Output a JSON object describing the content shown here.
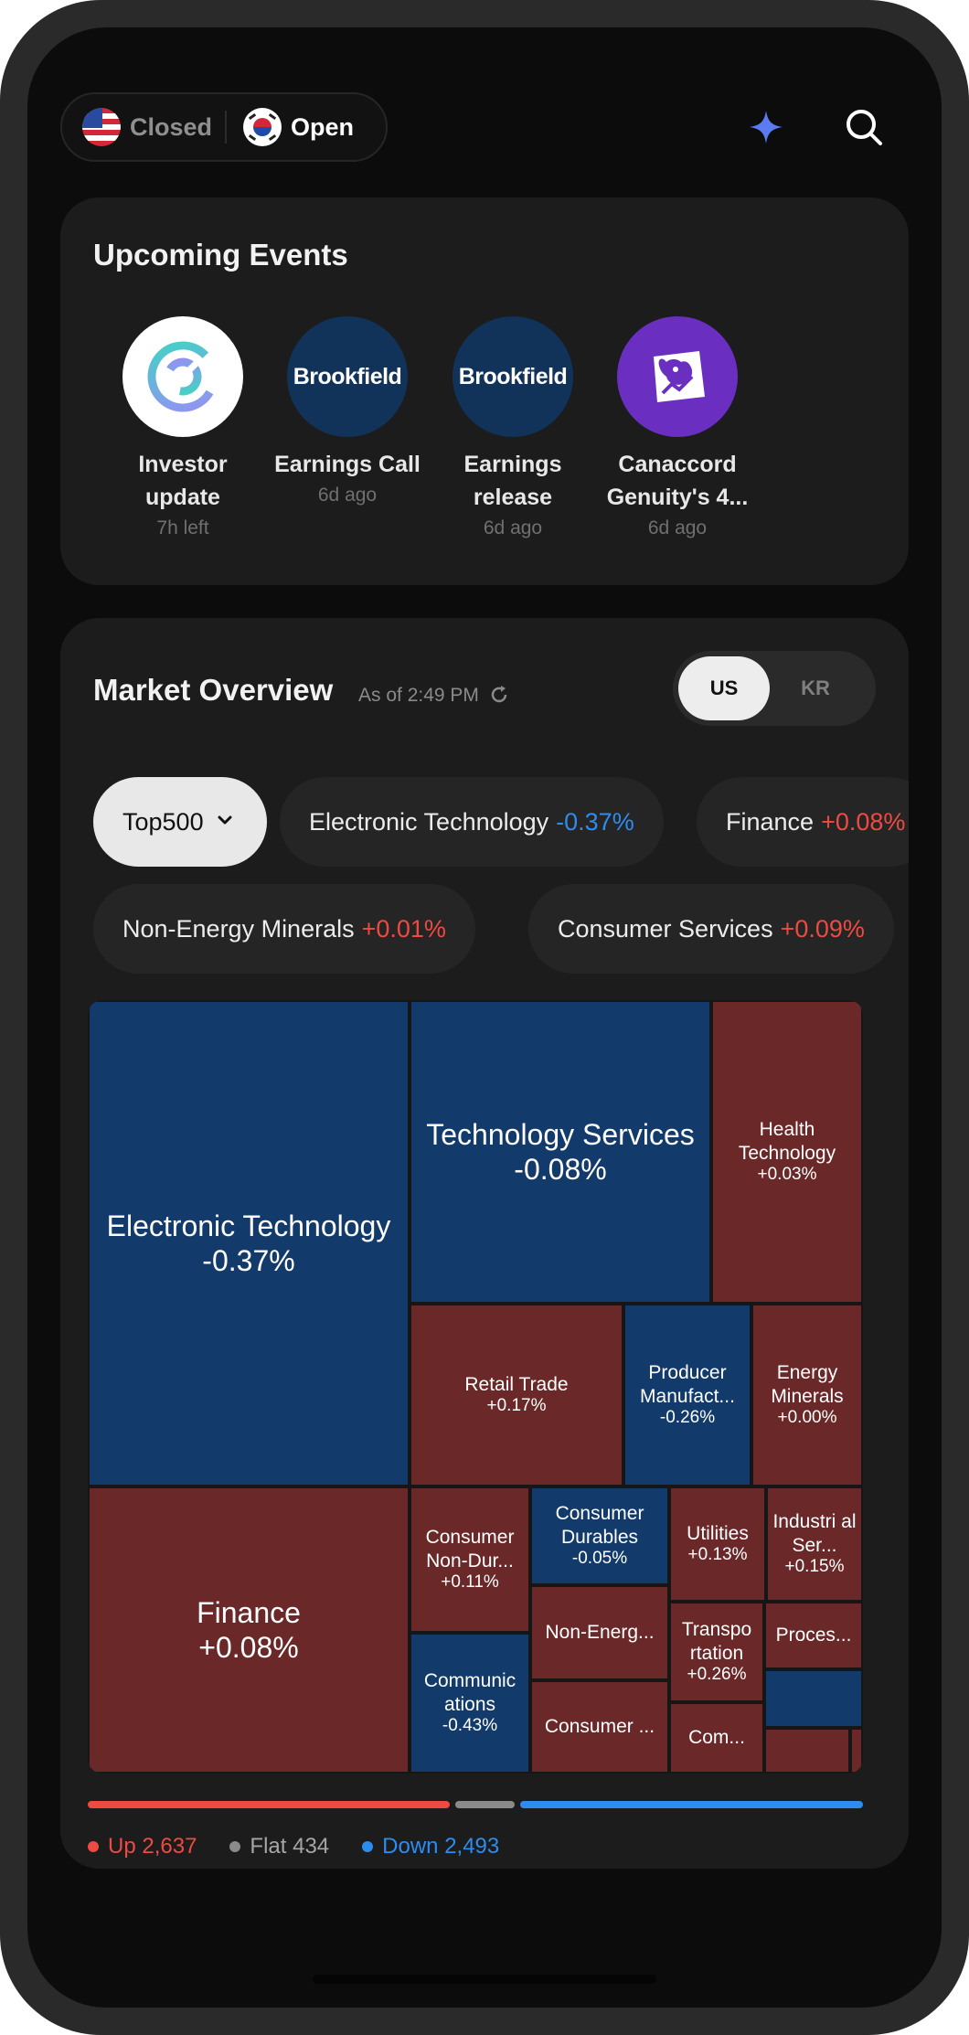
{
  "markets": {
    "us": {
      "label": "Closed",
      "flag": "us-flag-icon"
    },
    "kr": {
      "label": "Open",
      "flag": "kr-flag-icon"
    }
  },
  "header_icons": [
    "sparkle-icon",
    "search-icon"
  ],
  "events": {
    "title": "Upcoming Events",
    "items": [
      {
        "name": "Investor update",
        "time": "7h left",
        "logo": "ring-logo"
      },
      {
        "name": "Earnings Call",
        "time": "6d ago",
        "logo_text": "Brookfield"
      },
      {
        "name": "Earnings release",
        "time": "6d ago",
        "logo_text": "Brookfield"
      },
      {
        "name": "Canaccord Genuity's 4...",
        "time": "6d ago",
        "logo": "dog-logo"
      }
    ]
  },
  "overview": {
    "title": "Market Overview",
    "as_of": "As of 2:49 PM",
    "region_toggle": {
      "options": [
        "US",
        "KR"
      ],
      "selected": "US"
    },
    "filter": {
      "label": "Top500"
    },
    "chips_row1": [
      {
        "name": "Electronic Technology",
        "change": "-0.37%"
      },
      {
        "name": "Finance",
        "change": "+0.08%"
      }
    ],
    "chips_row2": [
      {
        "name": "Non-Energy Minerals",
        "change": "+0.01%"
      },
      {
        "name": "Consumer Services",
        "change": "+0.09%"
      }
    ],
    "treemap": [
      {
        "name": "Electronic Technology",
        "change": "-0.37%",
        "dir": "down"
      },
      {
        "name": "Technology Services",
        "change": "-0.08%",
        "dir": "down"
      },
      {
        "name": "Health Technology",
        "change": "+0.03%",
        "dir": "up"
      },
      {
        "name": "Retail Trade",
        "change": "+0.17%",
        "dir": "up"
      },
      {
        "name": "Producer Manufact...",
        "change": "-0.26%",
        "dir": "down"
      },
      {
        "name": "Energy Minerals",
        "change": "+0.00%",
        "dir": "up"
      },
      {
        "name": "Finance",
        "change": "+0.08%",
        "dir": "up"
      },
      {
        "name": "Consumer Non-Dur...",
        "change": "+0.11%",
        "dir": "up"
      },
      {
        "name": "Consumer Durables",
        "change": "-0.05%",
        "dir": "down"
      },
      {
        "name": "Utilities",
        "change": "+0.13%",
        "dir": "up"
      },
      {
        "name": "Industri al Ser...",
        "change": "+0.15%",
        "dir": "up"
      },
      {
        "name": "Non-Energ...",
        "change": "",
        "dir": "up"
      },
      {
        "name": "Transpo rtation",
        "change": "+0.26%",
        "dir": "up"
      },
      {
        "name": "Proces...",
        "change": "",
        "dir": "up"
      },
      {
        "name": "Communic ations",
        "change": "-0.43%",
        "dir": "down"
      },
      {
        "name": "Consumer ...",
        "change": "",
        "dir": "up"
      },
      {
        "name": "Com...",
        "change": "",
        "dir": "up"
      }
    ],
    "breadth": {
      "up_label": "Up",
      "up": "2,637",
      "flat_label": "Flat",
      "flat": "434",
      "down_label": "Down",
      "down": "2,493"
    },
    "colors": {
      "up": "#ef4a41",
      "down": "#2d8cf0",
      "flat": "#8a8a8a",
      "tile_up": "#6a2828",
      "tile_down": "#123a6b"
    }
  }
}
